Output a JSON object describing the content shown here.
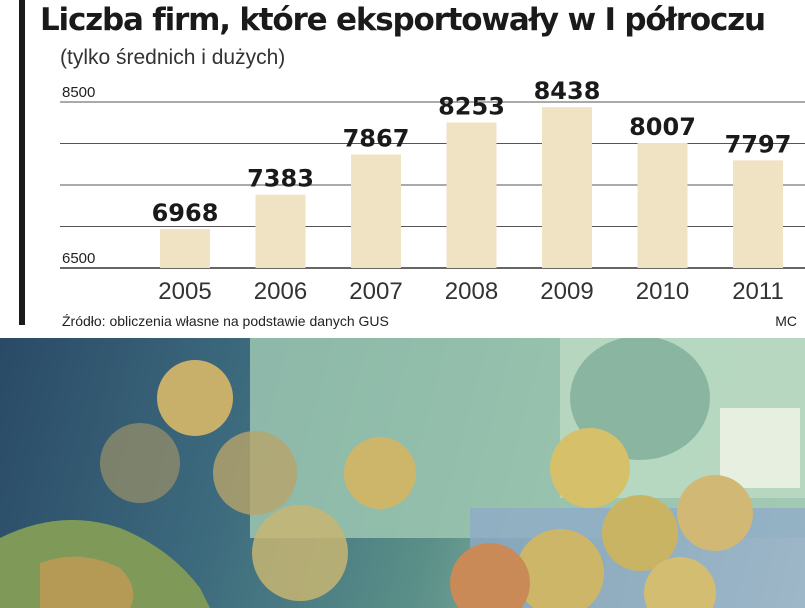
{
  "chart_data": {
    "type": "bar",
    "title": "Liczba firm, które eksportowały w I półroczu",
    "subtitle": "(tylko średnich i dużych)",
    "categories": [
      "2005",
      "2006",
      "2007",
      "2008",
      "2009",
      "2010",
      "2011"
    ],
    "values": [
      6968,
      7383,
      7867,
      8253,
      8438,
      8007,
      7797
    ],
    "y_ticks": [
      6500,
      8500
    ],
    "ylim": [
      6500,
      8500
    ],
    "grid": true,
    "bar_color": "#f0e3c4",
    "source": "Źródło: obliczenia własne na podstawie danych GUS",
    "author": "MC"
  }
}
